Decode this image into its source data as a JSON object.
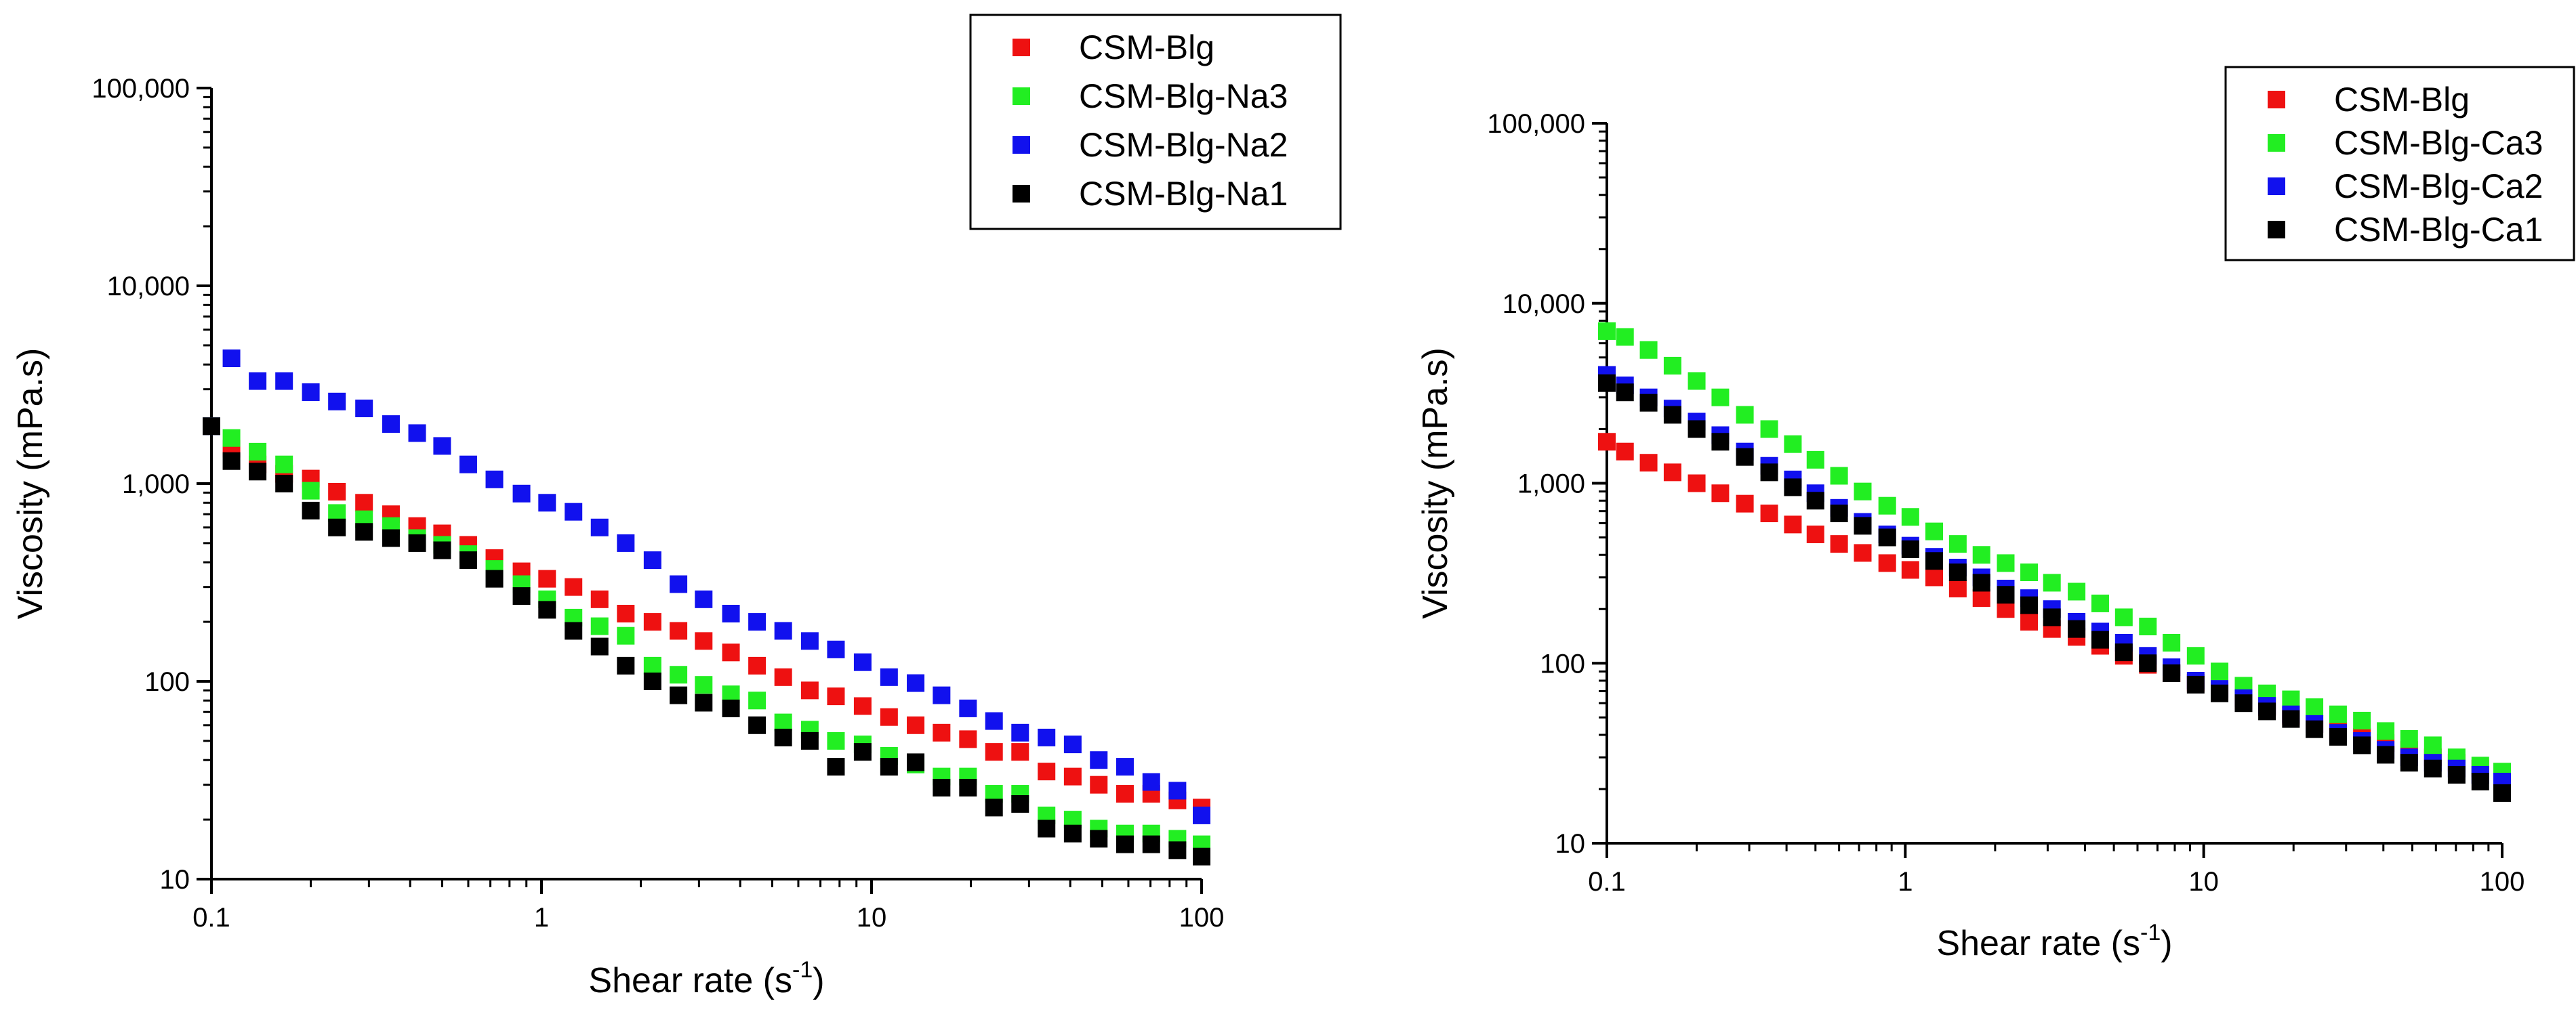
{
  "chart_data": [
    {
      "type": "scatter",
      "x_scale": "log",
      "y_scale": "log",
      "xlim": [
        0.1,
        100
      ],
      "ylim": [
        10,
        100000
      ],
      "xlabel": "Shear rate (s",
      "xlabel_sup": "-1",
      "xlabel_end": ")",
      "ylabel": "Viscosity (mPa.s)",
      "x_ticks": [
        0.1,
        1,
        10,
        100
      ],
      "x_tick_labels": [
        "0.1",
        "1",
        "10",
        "100"
      ],
      "y_ticks": [
        10,
        100,
        1000,
        10000,
        100000
      ],
      "y_tick_labels": [
        "10",
        "100",
        "1,000",
        "10,000",
        "100,000"
      ],
      "legend": "top-right",
      "x": [
        0.1,
        0.115,
        0.138,
        0.166,
        0.2,
        0.24,
        0.29,
        0.35,
        0.42,
        0.5,
        0.6,
        0.72,
        0.87,
        1.04,
        1.25,
        1.5,
        1.8,
        2.17,
        2.6,
        3.1,
        3.75,
        4.5,
        5.4,
        6.5,
        7.8,
        9.4,
        11.3,
        13.6,
        16.3,
        19.6,
        23.5,
        28.2,
        33.9,
        40.7,
        48.8,
        58.6,
        70.4,
        84.5,
        100
      ],
      "series": [
        {
          "name": "CSM-Blg",
          "color": "#ee1111",
          "values": [
            1950,
            1500,
            1250,
            1120,
            1060,
            910,
            800,
            700,
            610,
            560,
            490,
            420,
            360,
            330,
            300,
            260,
            220,
            200,
            180,
            160,
            140,
            120,
            105,
            90,
            84,
            75,
            66,
            60,
            55,
            51,
            44,
            44,
            35,
            33,
            30,
            27,
            27,
            25,
            23
          ]
        },
        {
          "name": "CSM-Blg-Na3",
          "color": "#22ee22",
          "values": [
            1950,
            1700,
            1450,
            1250,
            920,
            710,
            660,
            610,
            530,
            490,
            440,
            370,
            310,
            260,
            210,
            190,
            170,
            120,
            108,
            96,
            86,
            80,
            62,
            57,
            50,
            48,
            42,
            38,
            33,
            33,
            27,
            27,
            21,
            20,
            18,
            17,
            17,
            16,
            15
          ]
        },
        {
          "name": "CSM-Blg-Na2",
          "color": "#1111ee",
          "values": [
            1950,
            4300,
            3300,
            3300,
            2900,
            2600,
            2400,
            2000,
            1800,
            1550,
            1250,
            1050,
            890,
            800,
            720,
            600,
            500,
            410,
            310,
            260,
            220,
            200,
            180,
            160,
            145,
            125,
            105,
            98,
            85,
            73,
            63,
            55,
            52,
            48,
            40,
            37,
            31,
            28,
            21
          ]
        },
        {
          "name": "CSM-Blg-Na1",
          "color": "#000000",
          "values": [
            1950,
            1300,
            1150,
            1000,
            730,
            600,
            570,
            530,
            500,
            460,
            410,
            330,
            270,
            230,
            180,
            150,
            120,
            100,
            85,
            78,
            73,
            60,
            52,
            50,
            37,
            44,
            37,
            39,
            29,
            29,
            23,
            24,
            18,
            17,
            16,
            15,
            15,
            14,
            13
          ]
        }
      ]
    },
    {
      "type": "scatter",
      "x_scale": "log",
      "y_scale": "log",
      "xlim": [
        0.1,
        100
      ],
      "ylim": [
        10,
        100000
      ],
      "xlabel": "Shear rate (s",
      "xlabel_sup": "-1",
      "xlabel_end": ")",
      "ylabel": "Viscosity (mPa.s)",
      "x_ticks": [
        0.1,
        1,
        10,
        100
      ],
      "x_tick_labels": [
        "0.1",
        "1",
        "10",
        "100"
      ],
      "y_ticks": [
        10,
        100,
        1000,
        10000,
        100000
      ],
      "y_tick_labels": [
        "10",
        "100",
        "1,000",
        "10,000",
        "100,000"
      ],
      "legend": "top-right",
      "x": [
        0.1,
        0.115,
        0.138,
        0.166,
        0.2,
        0.24,
        0.29,
        0.35,
        0.42,
        0.5,
        0.6,
        0.72,
        0.87,
        1.04,
        1.25,
        1.5,
        1.8,
        2.17,
        2.6,
        3.1,
        3.75,
        4.5,
        5.4,
        6.5,
        7.8,
        9.4,
        11.3,
        13.6,
        16.3,
        19.6,
        23.5,
        28.2,
        33.9,
        40.7,
        48.8,
        58.6,
        70.4,
        84.5,
        100
      ],
      "series": [
        {
          "name": "CSM-Blg",
          "color": "#ee1111",
          "values": [
            1700,
            1500,
            1300,
            1150,
            1000,
            880,
            770,
            680,
            590,
            520,
            460,
            410,
            360,
            330,
            300,
            260,
            230,
            200,
            170,
            155,
            140,
            125,
            110,
            98,
            88,
            78,
            70,
            62,
            57,
            51,
            46,
            42,
            39,
            36,
            33,
            30,
            28,
            26,
            23
          ]
        },
        {
          "name": "CSM-Blg-Ca3",
          "color": "#22ee22",
          "values": [
            7000,
            6500,
            5500,
            4500,
            3700,
            3000,
            2400,
            2000,
            1650,
            1350,
            1100,
            900,
            750,
            650,
            540,
            460,
            400,
            360,
            320,
            280,
            250,
            215,
            180,
            160,
            130,
            110,
            90,
            75,
            68,
            63,
            57,
            52,
            48,
            42,
            38,
            35,
            30,
            27,
            25
          ]
        },
        {
          "name": "CSM-Blg-Ca2",
          "color": "#1111ee",
          "values": [
            4000,
            3500,
            3000,
            2600,
            2200,
            1850,
            1500,
            1250,
            1050,
            880,
            730,
            610,
            520,
            450,
            390,
            340,
            300,
            260,
            230,
            200,
            170,
            150,
            130,
            110,
            95,
            80,
            72,
            64,
            58,
            52,
            46,
            41,
            37,
            33,
            30,
            28,
            26,
            24,
            22
          ]
        },
        {
          "name": "CSM-Blg-Ca1",
          "color": "#000000",
          "values": [
            3600,
            3200,
            2800,
            2400,
            2000,
            1700,
            1400,
            1150,
            950,
            800,
            680,
            580,
            500,
            430,
            370,
            320,
            280,
            240,
            210,
            180,
            155,
            135,
            115,
            100,
            88,
            76,
            68,
            60,
            54,
            49,
            43,
            39,
            35,
            31,
            28,
            26,
            24,
            22,
            19
          ]
        }
      ]
    }
  ]
}
